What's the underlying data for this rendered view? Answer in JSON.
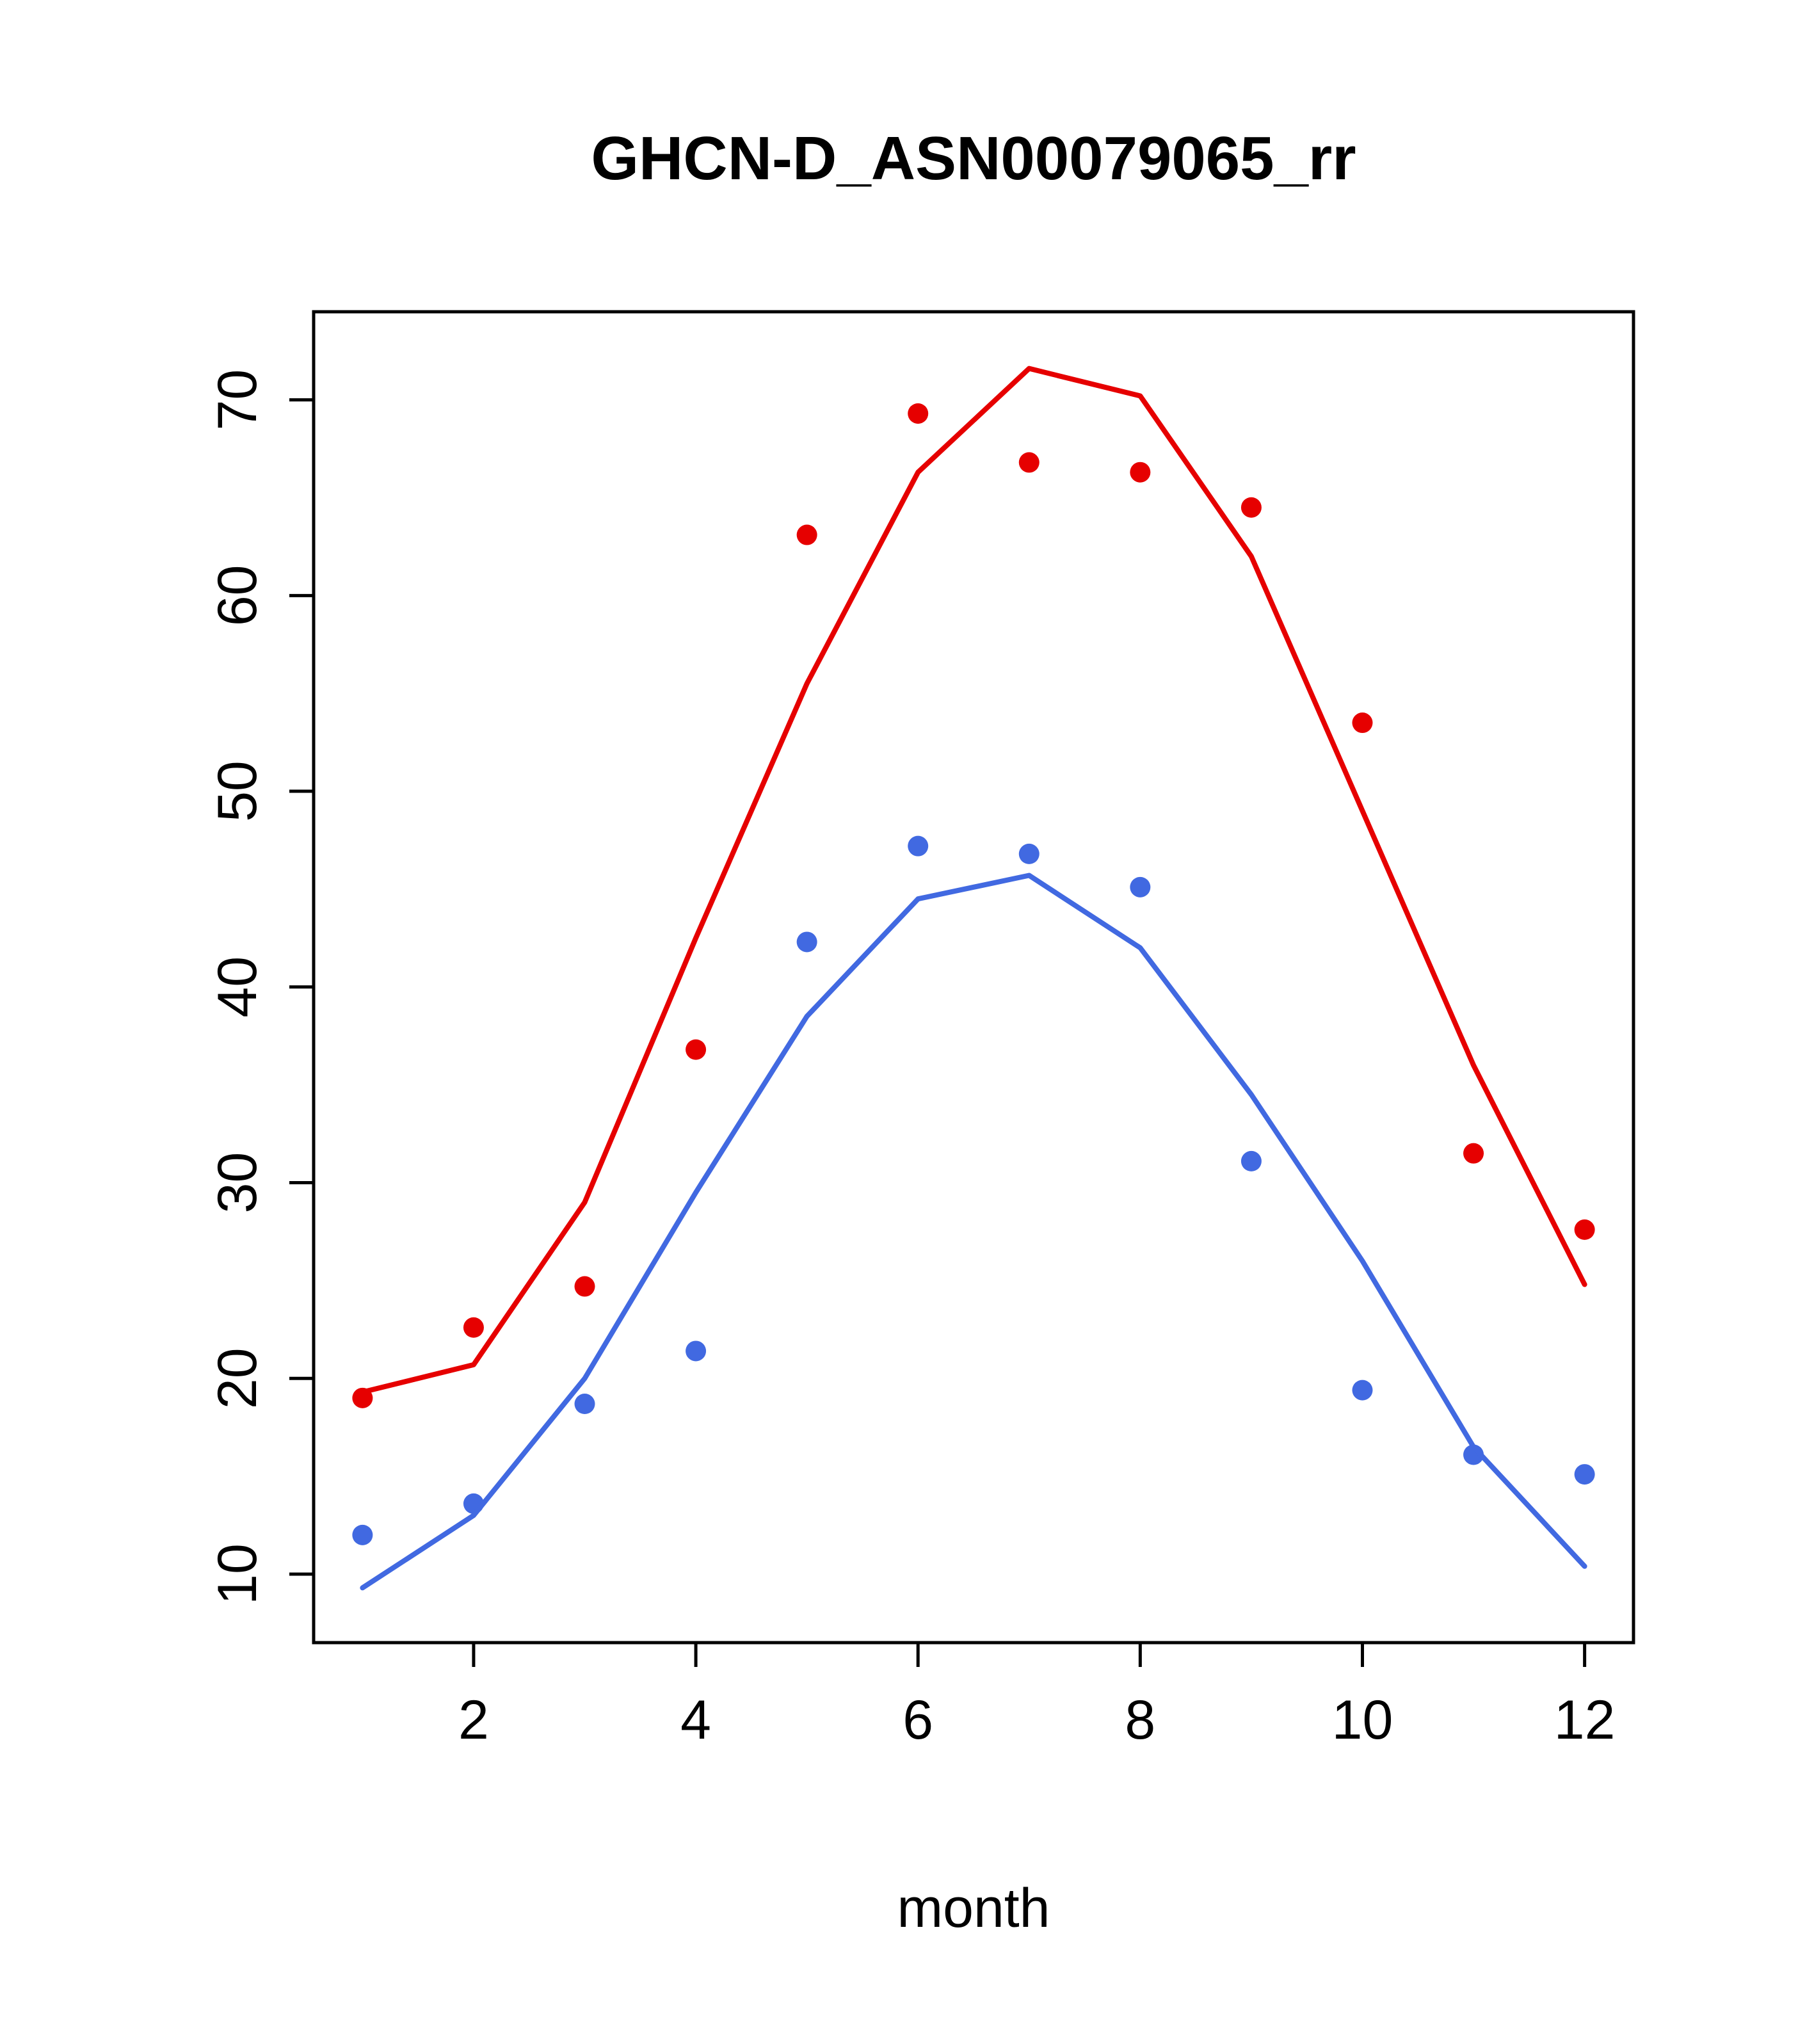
{
  "title": "GHCN-D_ASN00079065_rr",
  "xlabel": "month",
  "chart_data": {
    "type": "line",
    "title": "GHCN-D_ASN00079065_rr",
    "xlabel": "month",
    "ylabel": "",
    "x": [
      1,
      2,
      3,
      4,
      5,
      6,
      7,
      8,
      9,
      10,
      11,
      12
    ],
    "series": [
      {
        "name": "red-observed-points",
        "style": "points",
        "color": "#e60000",
        "values": [
          19.0,
          22.6,
          24.7,
          36.8,
          63.1,
          69.3,
          66.8,
          66.3,
          64.5,
          53.5,
          31.5,
          27.6
        ]
      },
      {
        "name": "red-model-line",
        "style": "line",
        "color": "#e60000",
        "values": [
          19.3,
          20.7,
          29.0,
          42.5,
          55.5,
          66.3,
          71.6,
          70.2,
          62.0,
          49.0,
          36.0,
          24.8
        ]
      },
      {
        "name": "blue-observed-points",
        "style": "points",
        "color": "#4169e1",
        "values": [
          12.0,
          13.6,
          18.7,
          21.4,
          42.3,
          47.2,
          46.8,
          45.1,
          31.1,
          19.4,
          16.1,
          15.1
        ]
      },
      {
        "name": "blue-model-line",
        "style": "line",
        "color": "#4169e1",
        "values": [
          9.3,
          13.0,
          20.0,
          29.5,
          38.5,
          44.5,
          45.7,
          42.0,
          34.5,
          26.0,
          16.5,
          10.4
        ]
      }
    ],
    "xticks": [
      2,
      4,
      6,
      8,
      10,
      12
    ],
    "yticks": [
      10,
      20,
      30,
      40,
      50,
      60,
      70
    ],
    "xlim": [
      0.56,
      12.44
    ],
    "ylim": [
      6.5,
      74.5
    ],
    "grid": false,
    "legend": false,
    "frame_color": "#000000",
    "background_color": "#ffffff"
  }
}
